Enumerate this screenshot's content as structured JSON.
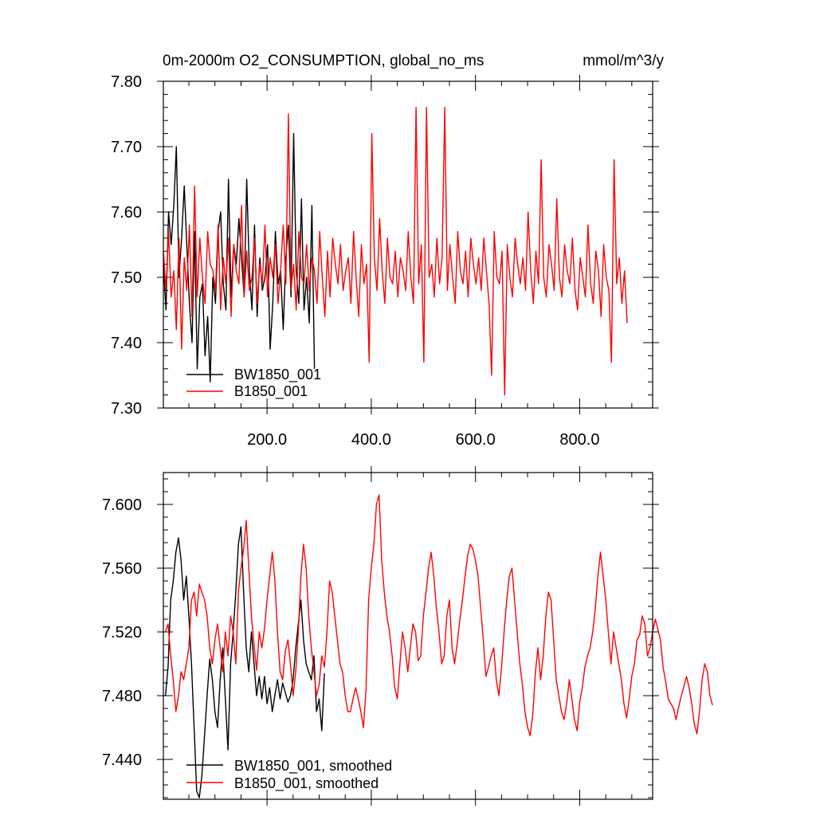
{
  "chart_data": [
    {
      "type": "line",
      "title_left": "0m-2000m O2_CONSUMPTION, global_no_ms",
      "title_right": "mmol/m^3/y",
      "xlabel": "",
      "ylabel": "",
      "xlim": [
        1,
        940
      ],
      "ylim": [
        7.3,
        7.8
      ],
      "x_ticks": [
        200,
        400,
        600,
        800
      ],
      "x_tick_labels": [
        "200.0",
        "400.0",
        "600.0",
        "800.0"
      ],
      "y_ticks": [
        7.3,
        7.4,
        7.5,
        7.6,
        7.7,
        7.8
      ],
      "y_tick_labels": [
        "7.30",
        "7.40",
        "7.50",
        "7.60",
        "7.70",
        "7.80"
      ],
      "legend_position": "bottom-left",
      "series": [
        {
          "name": "BW1850_001",
          "color": "#000000",
          "x_start": 1,
          "x_step": 5,
          "values": [
            7.52,
            7.45,
            7.6,
            7.55,
            7.61,
            7.7,
            7.5,
            7.56,
            7.64,
            7.55,
            7.46,
            7.4,
            7.57,
            7.36,
            7.47,
            7.49,
            7.38,
            7.44,
            7.34,
            7.5,
            7.46,
            7.57,
            7.6,
            7.49,
            7.45,
            7.65,
            7.47,
            7.55,
            7.52,
            7.59,
            7.53,
            7.47,
            7.65,
            7.51,
            7.45,
            7.58,
            7.44,
            7.53,
            7.48,
            7.5,
            7.55,
            7.39,
            7.46,
            7.57,
            7.49,
            7.51,
            7.42,
            7.53,
            7.58,
            7.47,
            7.72,
            7.51,
            7.46,
            7.62,
            7.45,
            7.5,
            7.43,
            7.61,
            7.36
          ]
        },
        {
          "name": "B1850_001",
          "color": "#ff0000",
          "x_start": 1,
          "x_step": 5,
          "values": [
            7.54,
            7.48,
            7.57,
            7.47,
            7.51,
            7.42,
            7.56,
            7.39,
            7.53,
            7.48,
            7.58,
            7.44,
            7.64,
            7.47,
            7.56,
            7.5,
            7.46,
            7.57,
            7.52,
            7.51,
            7.48,
            7.58,
            7.45,
            7.53,
            7.49,
            7.56,
            7.44,
            7.55,
            7.51,
            7.49,
            7.61,
            7.47,
            7.54,
            7.48,
            7.5,
            7.56,
            7.46,
            7.52,
            7.49,
            7.58,
            7.47,
            7.53,
            7.5,
            7.55,
            7.46,
            7.51,
            7.58,
            7.49,
            7.75,
            7.48,
            7.52,
            7.45,
            7.57,
            7.5,
            7.49,
            7.55,
            7.48,
            7.53,
            7.51,
            7.46,
            7.57,
            7.5,
            7.44,
            7.54,
            7.47,
            7.56,
            7.52,
            7.49,
            7.55,
            7.48,
            7.51,
            7.53,
            7.46,
            7.57,
            7.5,
            7.44,
            7.55,
            7.49,
            7.52,
            7.37,
            7.72,
            7.53,
            7.48,
            7.59,
            7.51,
            7.46,
            7.56,
            7.5,
            7.49,
            7.54,
            7.47,
            7.53,
            7.51,
            7.48,
            7.57,
            7.5,
            7.46,
            7.76,
            7.49,
            7.55,
            7.37,
            7.76,
            7.5,
            7.52,
            7.47,
            7.56,
            7.49,
            7.53,
            7.76,
            7.48,
            7.55,
            7.5,
            7.46,
            7.57,
            7.51,
            7.49,
            7.54,
            7.47,
            7.56,
            7.52,
            7.49,
            7.53,
            7.48,
            7.56,
            7.51,
            7.46,
            7.35,
            7.57,
            7.5,
            7.49,
            7.54,
            7.32,
            7.55,
            7.5,
            7.47,
            7.56,
            7.52,
            7.49,
            7.53,
            7.48,
            7.6,
            7.51,
            7.46,
            7.54,
            7.49,
            7.68,
            7.5,
            7.47,
            7.55,
            7.52,
            7.48,
            7.62,
            7.5,
            7.47,
            7.55,
            7.51,
            7.49,
            7.56,
            7.48,
            7.45,
            7.53,
            7.5,
            7.47,
            7.58,
            7.49,
            7.46,
            7.54,
            7.51,
            7.44,
            7.55,
            7.5,
            7.48,
            7.37,
            7.68,
            7.49,
            7.53,
            7.46,
            7.51,
            7.43
          ]
        }
      ]
    },
    {
      "type": "line",
      "title_left": "",
      "title_right": "",
      "xlabel": "",
      "ylabel": "",
      "xlim": [
        1,
        940
      ],
      "ylim": [
        7.415,
        7.62
      ],
      "x_ticks": [
        200,
        400,
        600,
        800
      ],
      "x_tick_labels": [],
      "y_ticks": [
        7.44,
        7.48,
        7.52,
        7.56,
        7.6
      ],
      "y_tick_labels": [
        "7.440",
        "7.480",
        "7.520",
        "7.560",
        "7.600"
      ],
      "legend_position": "bottom-left",
      "series": [
        {
          "name": "BW1850_001, smoothed",
          "color": "#000000",
          "x_start": 5,
          "x_step": 5,
          "values": [
            7.48,
            7.498,
            7.54,
            7.552,
            7.57,
            7.579,
            7.565,
            7.54,
            7.555,
            7.53,
            7.5,
            7.46,
            7.42,
            7.416,
            7.43,
            7.455,
            7.48,
            7.503,
            7.49,
            7.47,
            7.46,
            7.49,
            7.51,
            7.478,
            7.446,
            7.5,
            7.52,
            7.545,
            7.575,
            7.586,
            7.545,
            7.51,
            7.495,
            7.52,
            7.5,
            7.48,
            7.492,
            7.478,
            7.492,
            7.475,
            7.485,
            7.47,
            7.48,
            7.49,
            7.478,
            7.488,
            7.482,
            7.476,
            7.48,
            7.49,
            7.51,
            7.525,
            7.54,
            7.515,
            7.5,
            7.495,
            7.49,
            7.505,
            7.47,
            7.478,
            7.458,
            7.494
          ]
        },
        {
          "name": "B1850_001, smoothed",
          "color": "#ff0000",
          "x_start": 5,
          "x_step": 5,
          "values": [
            7.52,
            7.525,
            7.505,
            7.49,
            7.47,
            7.48,
            7.495,
            7.49,
            7.5,
            7.51,
            7.54,
            7.545,
            7.53,
            7.55,
            7.545,
            7.54,
            7.53,
            7.51,
            7.5,
            7.515,
            7.525,
            7.51,
            7.495,
            7.52,
            7.505,
            7.53,
            7.52,
            7.5,
            7.545,
            7.56,
            7.572,
            7.59,
            7.56,
            7.53,
            7.512,
            7.496,
            7.52,
            7.51,
            7.522,
            7.54,
            7.555,
            7.57,
            7.553,
            7.52,
            7.495,
            7.49,
            7.508,
            7.515,
            7.5,
            7.48,
            7.495,
            7.52,
            7.555,
            7.575,
            7.56,
            7.53,
            7.51,
            7.495,
            7.48,
            7.487,
            7.505,
            7.498,
            7.52,
            7.552,
            7.545,
            7.53,
            7.515,
            7.5,
            7.495,
            7.48,
            7.47,
            7.47,
            7.478,
            7.485,
            7.478,
            7.47,
            7.46,
            7.485,
            7.54,
            7.56,
            7.575,
            7.6,
            7.606,
            7.565,
            7.545,
            7.53,
            7.52,
            7.505,
            7.485,
            7.478,
            7.5,
            7.52,
            7.51,
            7.495,
            7.51,
            7.525,
            7.52,
            7.502,
            7.505,
            7.53,
            7.545,
            7.56,
            7.57,
            7.555,
            7.535,
            7.52,
            7.5,
            7.505,
            7.53,
            7.54,
            7.51,
            7.5,
            7.513,
            7.528,
            7.54,
            7.555,
            7.568,
            7.575,
            7.572,
            7.565,
            7.555,
            7.535,
            7.515,
            7.492,
            7.498,
            7.505,
            7.51,
            7.49,
            7.48,
            7.498,
            7.52,
            7.54,
            7.555,
            7.56,
            7.54,
            7.52,
            7.5,
            7.487,
            7.47,
            7.46,
            7.455,
            7.468,
            7.495,
            7.51,
            7.49,
            7.505,
            7.53,
            7.545,
            7.54,
            7.515,
            7.49,
            7.48,
            7.47,
            7.465,
            7.475,
            7.49,
            7.478,
            7.465,
            7.458,
            7.476,
            7.485,
            7.498,
            7.505,
            7.51,
            7.52,
            7.535,
            7.555,
            7.57,
            7.555,
            7.54,
            7.52,
            7.5,
            7.52,
            7.51,
            7.5,
            7.49,
            7.475,
            7.466,
            7.478,
            7.492,
            7.5,
            7.515,
            7.518,
            7.53,
            7.525,
            7.505,
            7.51,
            7.52,
            7.528,
            7.522,
            7.515,
            7.498,
            7.489,
            7.478,
            7.475,
            7.472,
            7.465,
            7.473,
            7.48,
            7.486,
            7.492,
            7.485,
            7.475,
            7.462,
            7.456,
            7.47,
            7.49,
            7.5,
            7.495,
            7.48,
            7.474
          ]
        }
      ]
    }
  ]
}
